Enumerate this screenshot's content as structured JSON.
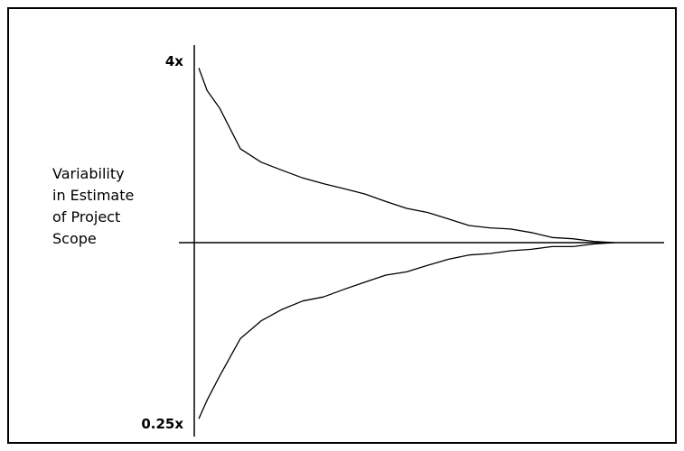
{
  "chart_data": {
    "type": "line",
    "title": "",
    "xlabel": "",
    "ylabel": [
      "Variability",
      "in Estimate",
      "of Project",
      "Scope"
    ],
    "y_scale": "log",
    "ylim": [
      0.25,
      4
    ],
    "y_ticks": [
      {
        "value": 4,
        "label": "4x"
      },
      {
        "value": 0.25,
        "label": "0.25x"
      }
    ],
    "xlim": [
      0,
      1
    ],
    "grid": false,
    "legend": "none",
    "series": [
      {
        "x": [
          0.0,
          0.02,
          0.05,
          0.1,
          0.15,
          0.2,
          0.25,
          0.3,
          0.35,
          0.4,
          0.45,
          0.5,
          0.55,
          0.6,
          0.65,
          0.7,
          0.75,
          0.8,
          0.85,
          0.9,
          0.95,
          1.0
        ],
        "values": [
          3.8,
          3.2,
          2.8,
          2.05,
          1.85,
          1.74,
          1.64,
          1.57,
          1.51,
          1.45,
          1.37,
          1.3,
          1.26,
          1.2,
          1.14,
          1.12,
          1.11,
          1.08,
          1.04,
          1.03,
          1.01,
          1.0
        ]
      },
      {
        "x": [
          0.0,
          0.02,
          0.05,
          0.1,
          0.15,
          0.2,
          0.25,
          0.3,
          0.35,
          0.4,
          0.45,
          0.5,
          0.55,
          0.6,
          0.65,
          0.7,
          0.75,
          0.8,
          0.85,
          0.9,
          0.95,
          1.0
        ],
        "values": [
          0.26,
          0.3,
          0.36,
          0.48,
          0.55,
          0.6,
          0.64,
          0.66,
          0.7,
          0.74,
          0.78,
          0.8,
          0.84,
          0.88,
          0.91,
          0.92,
          0.94,
          0.95,
          0.97,
          0.97,
          0.99,
          1.0
        ]
      }
    ]
  }
}
